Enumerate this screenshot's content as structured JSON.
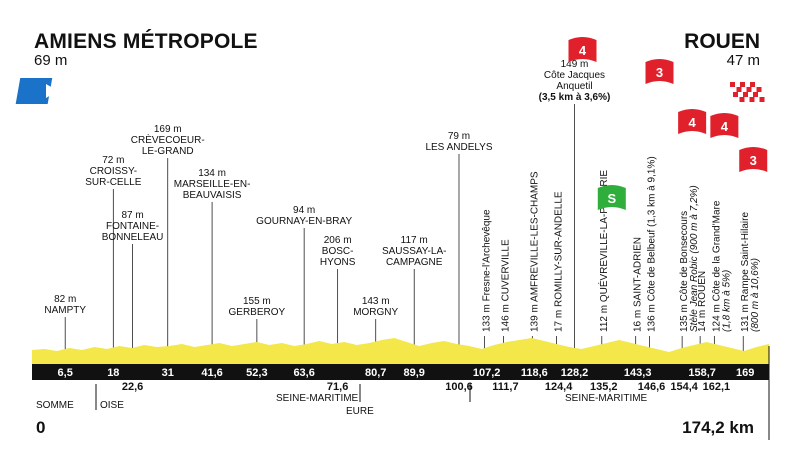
{
  "start": {
    "name": "AMIENS MÉTROPOLE",
    "altitude": "69 m",
    "km": "0"
  },
  "finish": {
    "name": "ROUEN",
    "altitude": "47 m",
    "km": "174,2 km"
  },
  "colors": {
    "profile": "#f3e74a",
    "band": "#111111",
    "start_flag": "#1a73c9",
    "climb_flag": "#e0202b",
    "sprint_flag": "#2fae3c"
  },
  "upper_labels": [
    {
      "alt": "82 m",
      "name": [
        "NAMPTY"
      ],
      "km": 6.5
    },
    {
      "alt": "72 m",
      "name": [
        "CROISSY-",
        "SUR-CELLE"
      ],
      "km": 18
    },
    {
      "alt": "87 m",
      "name": [
        "FONTAINE-",
        "BONNELEAU"
      ],
      "km": 22.6
    },
    {
      "alt": "169 m",
      "name": [
        "CRÈVECOEUR-",
        "LE-GRAND"
      ],
      "km": 31
    },
    {
      "alt": "134 m",
      "name": [
        "MARSEILLE-EN-",
        "BEAUVAISIS"
      ],
      "km": 41.6
    },
    {
      "alt": "155 m",
      "name": [
        "GERBEROY"
      ],
      "km": 52.3
    },
    {
      "alt": "94 m",
      "name": [
        "GOURNAY-EN-BRAY"
      ],
      "km": 63.6
    },
    {
      "alt": "206 m",
      "name": [
        "BOSC-",
        "HYONS"
      ],
      "km": 71.6
    },
    {
      "alt": "143 m",
      "name": [
        "MORGNY"
      ],
      "km": 80.7
    },
    {
      "alt": "117 m",
      "name": [
        "SAUSSAY-LA-",
        "CAMPAGNE"
      ],
      "km": 89.9
    },
    {
      "alt": "79 m",
      "name": [
        "LES ANDELYS"
      ],
      "km": 100.6
    },
    {
      "alt": "149 m",
      "name": [
        "Côte Jacques",
        "Anquetil"
      ],
      "detail": "(3,5 km à 3,6%)",
      "km": 128.2
    }
  ],
  "vertical_labels": [
    {
      "text": "133 m Fresne-l'Archevêque",
      "km": 107.2
    },
    {
      "text": "146 m CUVERVILLE",
      "km": 111.7
    },
    {
      "text": "139 m AMFREVILLE-LES-CHAMPS",
      "km": 118.6
    },
    {
      "text": "17 m ROMILLY-SUR-ANDELLE",
      "km": 124.4
    },
    {
      "text": "112 m QUÉVREVILLE-LA-POTERIE",
      "km": 135.2
    },
    {
      "text": "16 m SAINT-ADRIEN",
      "km": 143.3
    },
    {
      "text": "136 m Côte de Belbeuf (1,3 km à 9,1%)",
      "km": 146.6
    },
    {
      "text": "135 m Côte de Bonsecours",
      "sub": "Stèle Jean Robic (900 m à 7,2%)",
      "km": 154.4
    },
    {
      "text": "14 m ROUEN",
      "km": 158.7
    },
    {
      "text": "124 m Côte de la Grand'Mare",
      "sub": "(1,8 km à 5%)",
      "km": 162.1
    },
    {
      "text": "131 m Rampe Saint-Hilaire",
      "sub": "(800 m à 10,6%)",
      "km": 169
    }
  ],
  "flags": [
    {
      "label": "4",
      "km": 128.2
    },
    {
      "label": "3",
      "km": 146.6
    },
    {
      "label": "4",
      "km": 154.4
    },
    {
      "label": "4",
      "km": 162.1
    },
    {
      "label": "3",
      "km": 169
    },
    {
      "label": "S",
      "km": 135.2
    }
  ],
  "km_ticks_top": [
    "6,5",
    "18",
    "31",
    "41,6",
    "52,3",
    "63,6",
    "80,7",
    "89,9",
    "107,2",
    "118,6",
    "128,2",
    "143,3",
    "158,7",
    "169"
  ],
  "km_ticks_bottom": [
    "22,6",
    "71,6",
    "100,6",
    "111,7",
    "124,4",
    "135,2",
    "146,6",
    "154,4",
    "162,1"
  ],
  "departments": [
    "SOMME",
    "OISE",
    "SEINE-MARITIME",
    "EURE",
    "SEINE-MARITIME"
  ]
}
